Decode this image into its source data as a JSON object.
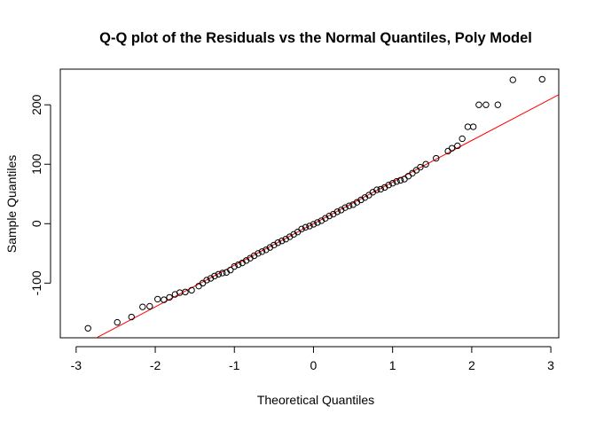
{
  "chart_data": {
    "type": "scatter",
    "title": "Q-Q plot of the Residuals vs the Normal Quantiles, Poly Model",
    "x_label": "Theoretical Quantiles",
    "y_label": "Sample Quantiles",
    "xlim": [
      -3.2,
      3.1
    ],
    "ylim": [
      -192,
      260
    ],
    "xticks": [
      -3,
      -2,
      -1,
      0,
      1,
      2,
      3
    ],
    "yticks": [
      -100,
      0,
      100,
      200
    ],
    "point_color": "#000000",
    "reference_line": {
      "intercept": 0,
      "slope": 70,
      "color": "#ff0000"
    },
    "x": [
      -2.85,
      -2.48,
      -2.3,
      -2.16,
      -2.07,
      -1.97,
      -1.89,
      -1.82,
      -1.75,
      -1.69,
      -1.62,
      -1.54,
      -1.45,
      -1.4,
      -1.35,
      -1.3,
      -1.25,
      -1.2,
      -1.15,
      -1.1,
      -1.05,
      -1.0,
      -0.95,
      -0.9,
      -0.85,
      -0.8,
      -0.75,
      -0.7,
      -0.65,
      -0.6,
      -0.55,
      -0.5,
      -0.45,
      -0.4,
      -0.35,
      -0.3,
      -0.25,
      -0.2,
      -0.15,
      -0.1,
      -0.05,
      0,
      0.05,
      0.1,
      0.15,
      0.2,
      0.25,
      0.3,
      0.35,
      0.4,
      0.45,
      0.5,
      0.55,
      0.6,
      0.65,
      0.7,
      0.75,
      0.8,
      0.85,
      0.9,
      0.95,
      1.0,
      1.05,
      1.1,
      1.15,
      1.2,
      1.25,
      1.3,
      1.35,
      1.42,
      1.55,
      1.7,
      1.75,
      1.82,
      1.88,
      1.95,
      2.02,
      2.09,
      2.18,
      2.33,
      2.52,
      2.89
    ],
    "values": [
      -176,
      -166,
      -157,
      -140,
      -139,
      -127,
      -128,
      -124,
      -119,
      -116,
      -115,
      -112,
      -105,
      -100,
      -95,
      -92,
      -88,
      -85,
      -83,
      -82,
      -78,
      -72,
      -69,
      -66,
      -62,
      -58,
      -54,
      -50,
      -47,
      -44,
      -40,
      -36,
      -32,
      -29,
      -26,
      -22,
      -18,
      -14,
      -9,
      -6,
      -4,
      -1,
      2,
      5,
      9,
      13,
      16,
      20,
      23,
      27,
      30,
      32,
      36,
      40,
      44,
      48,
      53,
      57,
      58,
      61,
      65,
      68,
      71,
      73,
      75,
      80,
      85,
      90,
      95,
      100,
      110,
      122,
      127,
      131,
      143,
      163,
      163,
      200,
      200,
      200,
      242,
      243
    ]
  }
}
